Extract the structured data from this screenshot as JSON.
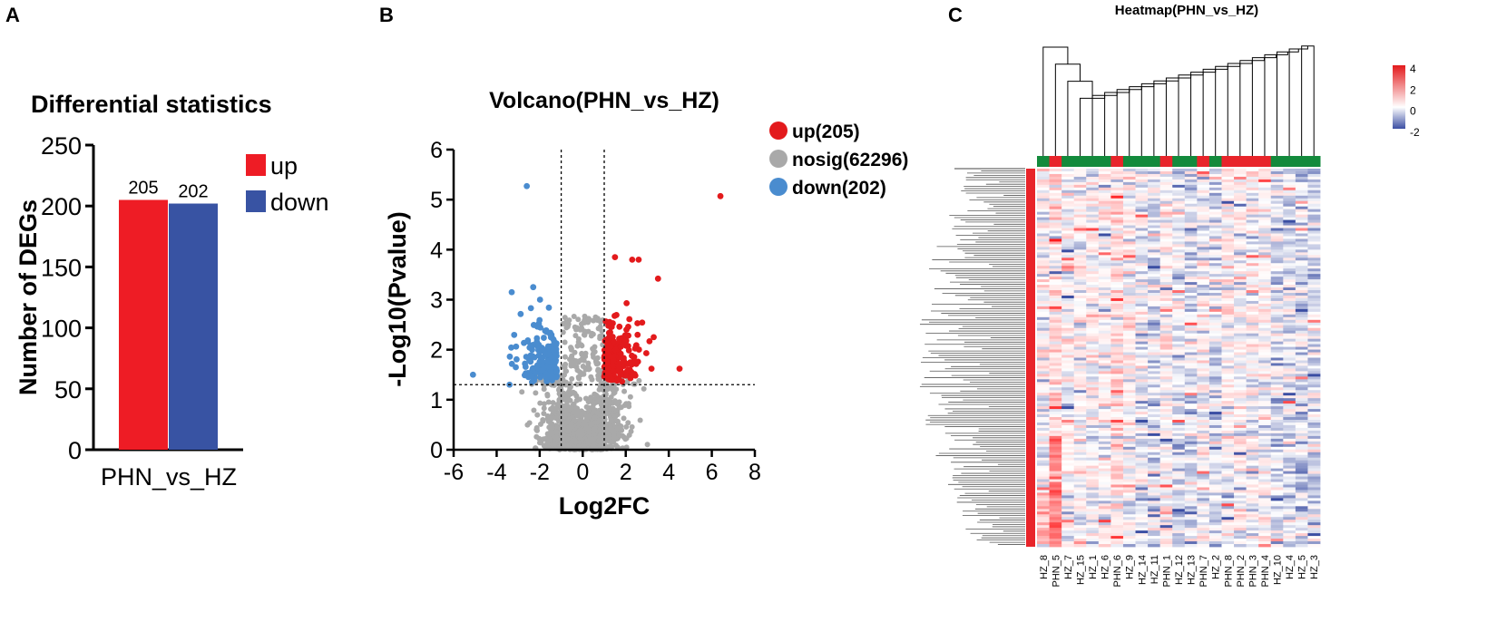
{
  "panel_labels": {
    "a": "A",
    "b": "B",
    "c": "C"
  },
  "colors": {
    "up": "#ee1c25",
    "down": "#3853a3",
    "nosig": "#a9a9a9",
    "up_point": "#e31a1c",
    "down_point": "#4a8ccf",
    "group_phn": "#e8242a",
    "group_hz": "#138a3c",
    "heat_high": "#e31a1c",
    "heat_low": "#3b4ea3",
    "heat_mid": "#ffffff"
  },
  "chart_data": [
    {
      "type": "bar",
      "title": "Differential statistics",
      "xlabel": "",
      "ylabel": "Number of DEGs",
      "categories": [
        "PHN_vs_HZ"
      ],
      "series": [
        {
          "name": "up",
          "values": [
            205
          ]
        },
        {
          "name": "down",
          "values": [
            202
          ]
        }
      ],
      "data_labels": [
        "205",
        "202"
      ],
      "ylim": [
        0,
        250
      ],
      "yticks": [
        "0",
        "50",
        "100",
        "150",
        "200",
        "250"
      ],
      "legend": [
        "up",
        "down"
      ],
      "legend_position": "top-right"
    },
    {
      "type": "scatter",
      "title": "Volcano(PHN_vs_HZ)",
      "xlabel": "Log2FC",
      "ylabel": "-Log10(Pvalue)",
      "xlim": [
        -6,
        8
      ],
      "ylim": [
        0,
        6
      ],
      "xticks": [
        "-6",
        "-4",
        "-2",
        "0",
        "2",
        "4",
        "6",
        "8"
      ],
      "yticks": [
        "0",
        "1",
        "2",
        "3",
        "4",
        "5",
        "6"
      ],
      "thresholds": {
        "log2fc": [
          -1,
          1
        ],
        "neg_log10_p": 1.3
      },
      "legend": [
        "up(205)",
        "nosig(62296)",
        "down(202)"
      ],
      "legend_position": "right",
      "highlighted_points": [
        {
          "x": 6.4,
          "y": 5.07,
          "group": "up"
        },
        {
          "x": -2.6,
          "y": 5.27,
          "group": "down"
        },
        {
          "x": 1.5,
          "y": 3.85,
          "group": "up"
        },
        {
          "x": 2.3,
          "y": 3.8,
          "group": "up"
        },
        {
          "x": 2.6,
          "y": 3.8,
          "group": "up"
        },
        {
          "x": 3.5,
          "y": 3.42,
          "group": "up"
        },
        {
          "x": -3.3,
          "y": 3.15,
          "group": "down"
        },
        {
          "x": -2.3,
          "y": 3.25,
          "group": "down"
        },
        {
          "x": -5.1,
          "y": 1.5,
          "group": "down"
        },
        {
          "x": -3.4,
          "y": 1.3,
          "group": "down"
        },
        {
          "x": 4.5,
          "y": 1.62,
          "group": "up"
        },
        {
          "x": 3.3,
          "y": 2.25,
          "group": "up"
        }
      ]
    },
    {
      "type": "heatmap",
      "title": "Heatmap(PHN_vs_HZ)",
      "columns": [
        "HZ_8",
        "PHN_5",
        "HZ_7",
        "HZ_15",
        "HZ_1",
        "HZ_6",
        "PHN_6",
        "HZ_9",
        "HZ_14",
        "HZ_11",
        "PHN_1",
        "HZ_12",
        "HZ_13",
        "PHN_7",
        "HZ_2",
        "PHN_8",
        "PHN_2",
        "PHN_3",
        "PHN_4",
        "HZ_10",
        "HZ_4",
        "HZ_5",
        "HZ_3"
      ],
      "groups": [
        "HZ",
        "PHN",
        "HZ",
        "HZ",
        "HZ",
        "HZ",
        "PHN",
        "HZ",
        "HZ",
        "HZ",
        "PHN",
        "HZ",
        "HZ",
        "PHN",
        "HZ",
        "PHN",
        "PHN",
        "PHN",
        "PHN",
        "HZ",
        "HZ",
        "HZ",
        "HZ"
      ],
      "color_scale": {
        "min": -2,
        "max": 4,
        "ticks": [
          "4",
          "2",
          "0",
          "-2"
        ]
      },
      "rows": 407
    }
  ]
}
